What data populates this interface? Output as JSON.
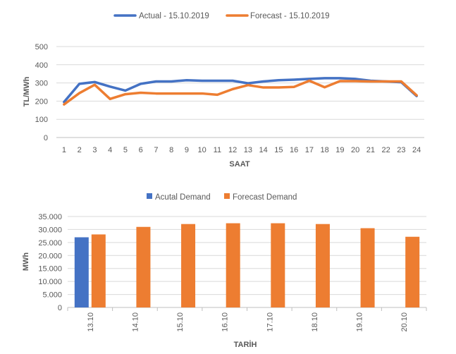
{
  "colors": {
    "actual": "#4472C4",
    "forecast": "#ED7D31",
    "grid": "#d9d9d9",
    "axis": "#bfbfbf",
    "text": "#595959"
  },
  "chart_data": [
    {
      "type": "line",
      "title": "",
      "xlabel": "SAAT",
      "ylabel": "TL/MWh",
      "ylim": [
        0,
        500
      ],
      "yticks": [
        "0",
        "100",
        "200",
        "300",
        "400",
        "500"
      ],
      "grid": true,
      "legend_position": "top",
      "x": [
        "1",
        "2",
        "3",
        "4",
        "5",
        "6",
        "7",
        "8",
        "9",
        "10",
        "11",
        "12",
        "13",
        "14",
        "15",
        "16",
        "17",
        "18",
        "19",
        "20",
        "21",
        "22",
        "23",
        "24"
      ],
      "series": [
        {
          "name": "Actual - 15.10.2019",
          "values": [
            195,
            295,
            305,
            280,
            258,
            295,
            308,
            308,
            315,
            312,
            312,
            312,
            298,
            308,
            315,
            318,
            322,
            326,
            326,
            322,
            312,
            308,
            304,
            228
          ]
        },
        {
          "name": "Forecast - 15.10.2019",
          "values": [
            182,
            244,
            290,
            212,
            238,
            246,
            242,
            242,
            242,
            242,
            235,
            266,
            288,
            275,
            275,
            278,
            312,
            276,
            310,
            310,
            308,
            308,
            308,
            232
          ]
        }
      ]
    },
    {
      "type": "bar",
      "title": "",
      "xlabel": "TARİH",
      "ylabel": "MWh",
      "ylim": [
        0,
        35000
      ],
      "yticks": [
        "0",
        "5.000",
        "10.000",
        "15.000",
        "20.000",
        "25.000",
        "30.000",
        "35.000"
      ],
      "grid": true,
      "legend_position": "top",
      "categories": [
        "13.10",
        "14.10",
        "15.10",
        "16.10",
        "17.10",
        "18.10",
        "19.10",
        "20.10"
      ],
      "series": [
        {
          "name": "Acutal Demand",
          "values": [
            27000,
            null,
            null,
            null,
            null,
            null,
            null,
            null
          ]
        },
        {
          "name": "Forecast Demand",
          "values": [
            28100,
            31000,
            32100,
            32400,
            32400,
            32100,
            30500,
            27200
          ]
        }
      ]
    }
  ]
}
